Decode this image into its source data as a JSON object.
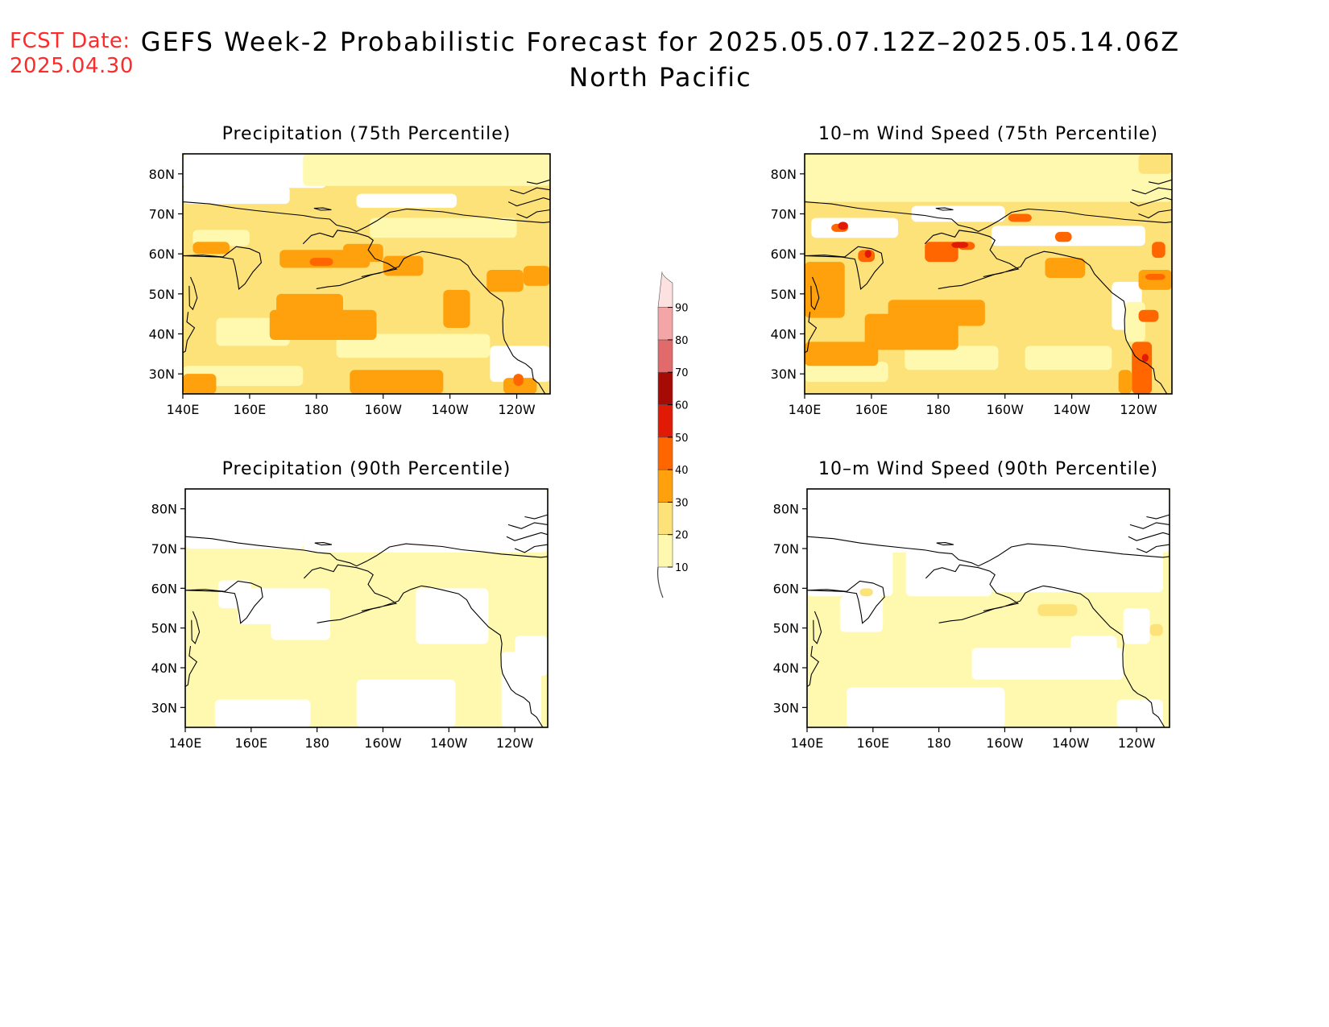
{
  "header": {
    "fcst_label": "FCST Date:",
    "fcst_date": "2025.04.30",
    "title_line1": "GEFS Week-2 Probabilistic Forecast for 2025.05.07.12Z–2025.05.14.06Z",
    "title_line2": "North Pacific"
  },
  "panels": [
    {
      "title": "Precipitation (75th Percentile)"
    },
    {
      "title": "10–m Wind Speed (75th Percentile)"
    },
    {
      "title": "Precipitation (90th Percentile)"
    },
    {
      "title": "10–m Wind Speed (90th Percentile)"
    }
  ],
  "axes": {
    "lon_labels": [
      "140E",
      "160E",
      "180",
      "160W",
      "140W",
      "120W"
    ],
    "lat_labels": [
      "80N",
      "70N",
      "60N",
      "50N",
      "40N",
      "30N"
    ]
  },
  "colorbar": {
    "levels": [
      "10",
      "20",
      "30",
      "40",
      "50",
      "60",
      "70",
      "80",
      "90"
    ],
    "colors": [
      "#fff9b0",
      "#fde279",
      "#ffa10c",
      "#ff6600",
      "#e01a05",
      "#a50a05",
      "#e16a6a",
      "#f4a6a6",
      "#fde0e0"
    ]
  },
  "colors": {
    "fcst_text": "#ff2a2a",
    "light": "#fff9b0",
    "medium": "#fde279",
    "orange": "#ffa10c",
    "dark_orange": "#ff6600",
    "red": "#e01a05"
  }
}
